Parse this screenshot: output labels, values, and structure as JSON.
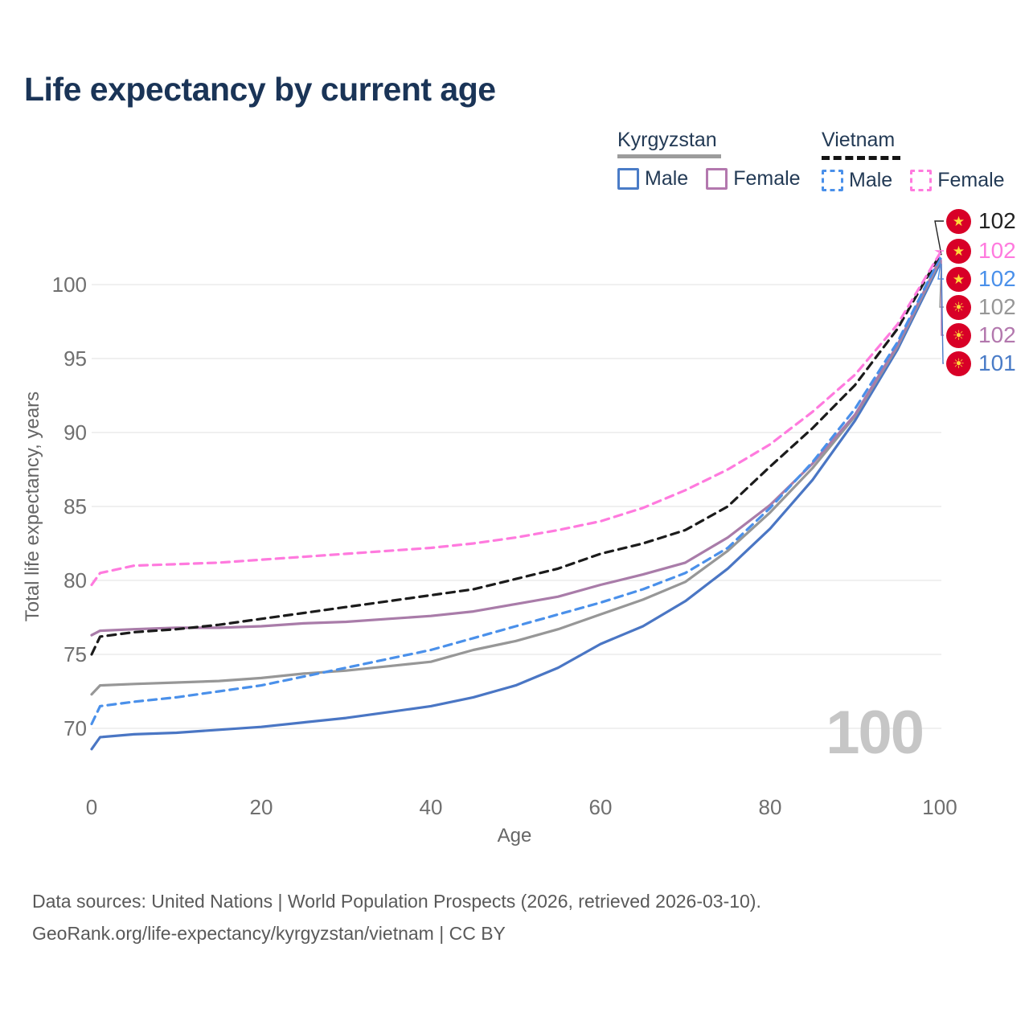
{
  "title": "Life expectancy by current age",
  "legend": {
    "groups": [
      {
        "name": "Kyrgyzstan",
        "line_style": "solid",
        "line_color": "#9c9c9c",
        "items": [
          {
            "label": "Male",
            "color": "#4a7cc7",
            "style": "solid"
          },
          {
            "label": "Female",
            "color": "#b378ae",
            "style": "solid"
          }
        ]
      },
      {
        "name": "Vietnam",
        "line_style": "dashed",
        "line_color": "#141414",
        "items": [
          {
            "label": "Male",
            "color": "#4a90ea",
            "style": "dashed"
          },
          {
            "label": "Female",
            "color": "#ff7ade",
            "style": "dashed"
          }
        ]
      }
    ]
  },
  "chart_data": {
    "type": "line",
    "title": "Life expectancy by current age",
    "xlabel": "Age",
    "ylabel": "Total life expectancy, years",
    "xlim": [
      0,
      100
    ],
    "ylim": [
      68,
      103
    ],
    "xticks": [
      0,
      20,
      40,
      60,
      80,
      100
    ],
    "yticks": [
      70,
      75,
      80,
      85,
      90,
      95,
      100
    ],
    "grid": "horizontal-only",
    "legend_position": "top-right",
    "x": [
      0,
      1,
      5,
      10,
      15,
      20,
      25,
      30,
      35,
      40,
      45,
      50,
      55,
      60,
      65,
      70,
      75,
      80,
      85,
      90,
      95,
      100
    ],
    "series": [
      {
        "id": "kg_male",
        "name": "Kyrgyzstan Male",
        "country": "Kyrgyzstan",
        "sex": "male",
        "color": "#4a76c4",
        "dash": "solid",
        "values": [
          68.6,
          69.4,
          69.6,
          69.7,
          69.9,
          70.1,
          70.4,
          70.7,
          71.1,
          71.5,
          72.1,
          72.9,
          74.1,
          75.7,
          76.9,
          78.6,
          80.8,
          83.5,
          86.8,
          90.8,
          95.6,
          101.4
        ]
      },
      {
        "id": "kg_total",
        "name": "Kyrgyzstan Total",
        "country": "Kyrgyzstan",
        "sex": "all",
        "color": "#979797",
        "dash": "solid",
        "values": [
          72.3,
          72.9,
          73.0,
          73.1,
          73.2,
          73.4,
          73.7,
          73.9,
          74.2,
          74.5,
          75.3,
          75.9,
          76.7,
          77.7,
          78.7,
          79.9,
          82.0,
          84.6,
          87.6,
          91.1,
          95.8,
          101.6
        ]
      },
      {
        "id": "kg_female",
        "name": "Kyrgyzstan Female",
        "country": "Kyrgyzstan",
        "sex": "female",
        "color": "#a97ca9",
        "dash": "solid",
        "values": [
          76.3,
          76.6,
          76.7,
          76.8,
          76.8,
          76.9,
          77.1,
          77.2,
          77.4,
          77.6,
          77.9,
          78.4,
          78.9,
          79.7,
          80.4,
          81.2,
          82.9,
          85.1,
          87.9,
          91.2,
          95.9,
          101.7
        ]
      },
      {
        "id": "vn_male",
        "name": "Vietnam Male",
        "country": "Vietnam",
        "sex": "male",
        "color": "#4a90ea",
        "dash": "dashed",
        "values": [
          70.3,
          71.5,
          71.8,
          72.1,
          72.5,
          72.9,
          73.5,
          74.1,
          74.7,
          75.3,
          76.1,
          76.9,
          77.7,
          78.5,
          79.4,
          80.5,
          82.2,
          84.9,
          88.0,
          91.6,
          96.1,
          101.8
        ]
      },
      {
        "id": "vn_total",
        "name": "Vietnam Total",
        "country": "Vietnam",
        "sex": "all",
        "color": "#1b1b1b",
        "dash": "dashed",
        "values": [
          75.0,
          76.2,
          76.5,
          76.7,
          77.0,
          77.4,
          77.8,
          78.2,
          78.6,
          79.0,
          79.4,
          80.1,
          80.8,
          81.8,
          82.5,
          83.4,
          85.0,
          87.7,
          90.3,
          93.2,
          97.0,
          102.0
        ]
      },
      {
        "id": "vn_female",
        "name": "Vietnam Female",
        "country": "Vietnam",
        "sex": "female",
        "color": "#ff7ade",
        "dash": "dashed",
        "values": [
          79.7,
          80.5,
          81.0,
          81.1,
          81.2,
          81.4,
          81.6,
          81.8,
          82.0,
          82.2,
          82.5,
          82.9,
          83.4,
          84.0,
          84.9,
          86.1,
          87.5,
          89.2,
          91.4,
          93.9,
          97.3,
          102.1
        ]
      }
    ]
  },
  "end_labels": [
    {
      "series": "vn_total",
      "flag": "vietnam",
      "value": "102",
      "color": "#222222"
    },
    {
      "series": "vn_female",
      "flag": "vietnam",
      "value": "102",
      "color": "#ff7ade"
    },
    {
      "series": "vn_male",
      "flag": "vietnam",
      "value": "102",
      "color": "#4a90ea"
    },
    {
      "series": "kg_total",
      "flag": "kyrgyzstan",
      "value": "102",
      "color": "#979797"
    },
    {
      "series": "kg_female",
      "flag": "kyrgyzstan",
      "value": "102",
      "color": "#b378ae"
    },
    {
      "series": "kg_male",
      "flag": "kyrgyzstan",
      "value": "101",
      "color": "#4a7cc7"
    }
  ],
  "flag_glyphs": {
    "vietnam": "★",
    "kyrgyzstan": "☀"
  },
  "watermark": "100",
  "footer": {
    "line1": "Data sources: United Nations | World Population Prospects (2026, retrieved 2026-03-10).",
    "line2": "GeoRank.org/life-expectancy/kyrgyzstan/vietnam | CC BY"
  }
}
